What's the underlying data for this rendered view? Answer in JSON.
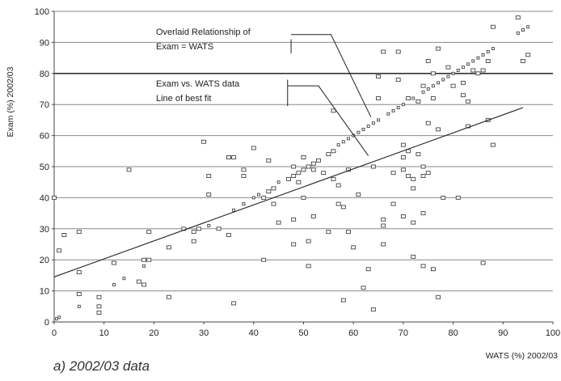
{
  "chart_data": {
    "type": "scatter",
    "title": "",
    "xlabel": "WATS (%) 2002/03",
    "ylabel": "Exam (%) 2002/03",
    "caption": "a) 2002/03 data",
    "xlim": [
      0,
      100
    ],
    "ylim": [
      0,
      100
    ],
    "x_ticks": [
      "0",
      "10",
      "20",
      "30",
      "40",
      "50",
      "60",
      "70",
      "80",
      "90",
      "100"
    ],
    "y_ticks": [
      "0",
      "10",
      "20",
      "30",
      "40",
      "50",
      "60",
      "70",
      "80",
      "90",
      "100"
    ],
    "grid": "horizontal",
    "annotations": [
      {
        "text": "Overlaid Relationship of",
        "target": "exam_equals_wats_line"
      },
      {
        "text": "Exam = WATS",
        "target": "exam_equals_wats_line"
      },
      {
        "text": "Exam vs. WATS data",
        "target": "data_points"
      },
      {
        "text": "Line of best fit",
        "target": "best_fit_line"
      }
    ],
    "lines": {
      "exam_equals_wats": {
        "x": [
          47,
          89
        ],
        "y": [
          47,
          89
        ]
      },
      "best_fit": {
        "x": [
          0,
          94
        ],
        "y": [
          14.5,
          69
        ]
      }
    },
    "points": [
      [
        0,
        40
      ],
      [
        0.5,
        1
      ],
      [
        1,
        1.5
      ],
      [
        1,
        23
      ],
      [
        2,
        28
      ],
      [
        5,
        29
      ],
      [
        5,
        16
      ],
      [
        5,
        9
      ],
      [
        5,
        5
      ],
      [
        9,
        8
      ],
      [
        9,
        5
      ],
      [
        9,
        3
      ],
      [
        12,
        19
      ],
      [
        12,
        12
      ],
      [
        14,
        14
      ],
      [
        15,
        49
      ],
      [
        17,
        13
      ],
      [
        18,
        20
      ],
      [
        18,
        18
      ],
      [
        18,
        12
      ],
      [
        19,
        20
      ],
      [
        19,
        29
      ],
      [
        23,
        8
      ],
      [
        23,
        24
      ],
      [
        26,
        30
      ],
      [
        28,
        29
      ],
      [
        28,
        26
      ],
      [
        29,
        30
      ],
      [
        30,
        58
      ],
      [
        31,
        47
      ],
      [
        31,
        41
      ],
      [
        31,
        31
      ],
      [
        33,
        30
      ],
      [
        35,
        28
      ],
      [
        35,
        53
      ],
      [
        36,
        53
      ],
      [
        36,
        36
      ],
      [
        36,
        6
      ],
      [
        38,
        49
      ],
      [
        38,
        47
      ],
      [
        38,
        38
      ],
      [
        40,
        40
      ],
      [
        40,
        56
      ],
      [
        41,
        41
      ],
      [
        42,
        40
      ],
      [
        42,
        20
      ],
      [
        43,
        42
      ],
      [
        43,
        52
      ],
      [
        44,
        43
      ],
      [
        44,
        38
      ],
      [
        45,
        45
      ],
      [
        45,
        32
      ],
      [
        47,
        46
      ],
      [
        48,
        47
      ],
      [
        48,
        50
      ],
      [
        48,
        33
      ],
      [
        48,
        25
      ],
      [
        49,
        48
      ],
      [
        49,
        45
      ],
      [
        50,
        53
      ],
      [
        50,
        49
      ],
      [
        50,
        40
      ],
      [
        51,
        50
      ],
      [
        51,
        26
      ],
      [
        51,
        18
      ],
      [
        52,
        51
      ],
      [
        52,
        49
      ],
      [
        52,
        34
      ],
      [
        53,
        52
      ],
      [
        54,
        48
      ],
      [
        55,
        54
      ],
      [
        55,
        29
      ],
      [
        56,
        68
      ],
      [
        56,
        55
      ],
      [
        56,
        46
      ],
      [
        57,
        57
      ],
      [
        57,
        44
      ],
      [
        57,
        38
      ],
      [
        58,
        58
      ],
      [
        58,
        37
      ],
      [
        58,
        7
      ],
      [
        59,
        59
      ],
      [
        59,
        49
      ],
      [
        59,
        29
      ],
      [
        60,
        60
      ],
      [
        60,
        24
      ],
      [
        61,
        61
      ],
      [
        61,
        41
      ],
      [
        62,
        62
      ],
      [
        62,
        11
      ],
      [
        63,
        63
      ],
      [
        63,
        17
      ],
      [
        64,
        64
      ],
      [
        64,
        50
      ],
      [
        64,
        4
      ],
      [
        65,
        79
      ],
      [
        65,
        72
      ],
      [
        65,
        65
      ],
      [
        66,
        87
      ],
      [
        66,
        33
      ],
      [
        66,
        31
      ],
      [
        66,
        25
      ],
      [
        67,
        67
      ],
      [
        68,
        68
      ],
      [
        68,
        48
      ],
      [
        68,
        38
      ],
      [
        69,
        69
      ],
      [
        69,
        78
      ],
      [
        69,
        87
      ],
      [
        70,
        70
      ],
      [
        70,
        57
      ],
      [
        70,
        53
      ],
      [
        70,
        49
      ],
      [
        70,
        34
      ],
      [
        71,
        72
      ],
      [
        71,
        55
      ],
      [
        71,
        47
      ],
      [
        72,
        72
      ],
      [
        72,
        46
      ],
      [
        72,
        43
      ],
      [
        72,
        32
      ],
      [
        72,
        21
      ],
      [
        73,
        71
      ],
      [
        73,
        54
      ],
      [
        74,
        74
      ],
      [
        74,
        76
      ],
      [
        74,
        50
      ],
      [
        74,
        47
      ],
      [
        74,
        35
      ],
      [
        74,
        18
      ],
      [
        75,
        75
      ],
      [
        75,
        64
      ],
      [
        75,
        48
      ],
      [
        75,
        84
      ],
      [
        76,
        76
      ],
      [
        76,
        80
      ],
      [
        76,
        72
      ],
      [
        76,
        17
      ],
      [
        77,
        77
      ],
      [
        77,
        62
      ],
      [
        77,
        88
      ],
      [
        77,
        8
      ],
      [
        78,
        78
      ],
      [
        78,
        40
      ],
      [
        79,
        79
      ],
      [
        79,
        82
      ],
      [
        80,
        80
      ],
      [
        80,
        76
      ],
      [
        81,
        81
      ],
      [
        81,
        40
      ],
      [
        82,
        82
      ],
      [
        82,
        77
      ],
      [
        82,
        73
      ],
      [
        83,
        83
      ],
      [
        83,
        71
      ],
      [
        83,
        63
      ],
      [
        84,
        84
      ],
      [
        84,
        81
      ],
      [
        85,
        85
      ],
      [
        85,
        80
      ],
      [
        86,
        86
      ],
      [
        86,
        81
      ],
      [
        86,
        19
      ],
      [
        87,
        87
      ],
      [
        87,
        84
      ],
      [
        87,
        65
      ],
      [
        88,
        88
      ],
      [
        88,
        95
      ],
      [
        88,
        57
      ],
      [
        93,
        93
      ],
      [
        93,
        98
      ],
      [
        94,
        94
      ],
      [
        94,
        84
      ],
      [
        95,
        95
      ],
      [
        95,
        86
      ]
    ]
  }
}
